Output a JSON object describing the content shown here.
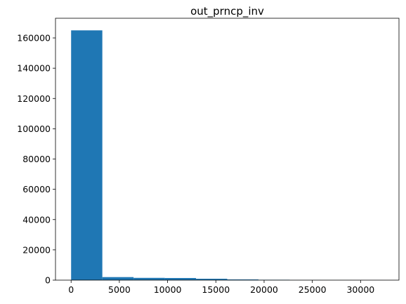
{
  "chart_data": {
    "type": "bar",
    "title": "out_prncp_inv",
    "xlabel": "",
    "ylabel": "",
    "xlim": [
      -1618,
      33978
    ],
    "ylim": [
      0,
      173000
    ],
    "x_ticks": [
      0,
      5000,
      10000,
      15000,
      20000,
      25000,
      30000
    ],
    "x_tick_labels": [
      "0",
      "5000",
      "10000",
      "15000",
      "20000",
      "25000",
      "30000"
    ],
    "y_ticks": [
      0,
      20000,
      40000,
      60000,
      80000,
      100000,
      120000,
      140000,
      160000
    ],
    "y_tick_labels": [
      "0",
      "20000",
      "40000",
      "60000",
      "80000",
      "100000",
      "120000",
      "140000",
      "160000"
    ],
    "bin_edges": [
      0,
      3236,
      6472,
      9708,
      12944,
      16180,
      19416,
      22652,
      25888,
      29124,
      32360
    ],
    "values": [
      165000,
      2000,
      1500,
      1400,
      900,
      450,
      250,
      60,
      30,
      10
    ],
    "bar_color": "#1f77b4",
    "grid": false,
    "legend": "none"
  }
}
